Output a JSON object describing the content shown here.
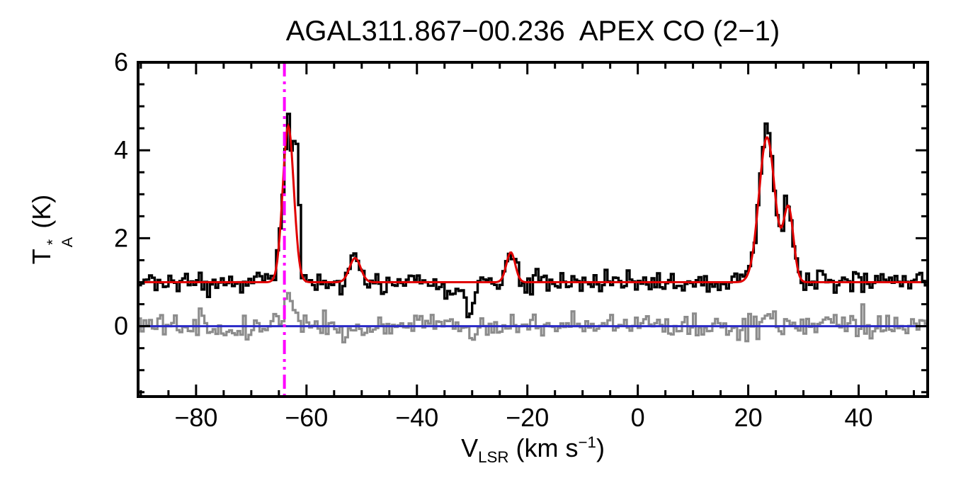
{
  "chart_data": {
    "type": "line",
    "title": "AGAL311.867−00.236  APEX CO (2−1)",
    "ylabel_parts": {
      "symbol": "T",
      "sup": "*",
      "sub": "A",
      "unit": "(K)"
    },
    "xlabel_parts": {
      "symbol": "V",
      "sub": "LSR",
      "pre_unit": "(km s",
      "exp": "−1",
      "post": ")"
    },
    "xlim": [
      -90.5,
      52.5
    ],
    "ylim": [
      -1.6,
      6
    ],
    "xticks": [
      -80,
      -60,
      -40,
      -20,
      0,
      20,
      40
    ],
    "yticks": [
      0,
      2,
      4,
      6
    ],
    "x_minor_step": 5,
    "y_minor_step": 0.5,
    "baseline": 1.0,
    "channel_width": 0.5,
    "noise_sigma": 0.12,
    "noise_seed": 20,
    "systemic_velocity": -64.0,
    "fit_components": [
      {
        "center": -63.3,
        "amp": 3.55,
        "sigma": 1.0
      },
      {
        "center": -51.2,
        "amp": 0.55,
        "sigma": 1.0
      },
      {
        "center": -23.0,
        "amp": 0.68,
        "sigma": 0.8
      },
      {
        "center": 23.4,
        "amp": 3.3,
        "sigma": 1.45
      },
      {
        "center": 27.3,
        "amp": 1.65,
        "sigma": 0.9
      }
    ],
    "spectrum_extra": [
      {
        "center": -61.7,
        "amp": 2.1,
        "sigma": 0.45
      },
      {
        "center": -30.3,
        "amp": -0.85,
        "sigma": 0.55
      },
      {
        "center": -33.5,
        "amp": -0.25,
        "sigma": 1.8
      },
      {
        "center": 23.2,
        "amp": 0.3,
        "sigma": 0.8
      }
    ],
    "residual": {
      "sigma": 0.14,
      "seed": 77,
      "features": [
        {
          "center": -63.2,
          "amp": 0.55,
          "sigma": 0.9
        },
        {
          "center": -30.3,
          "amp": -0.4,
          "sigma": 0.6
        },
        {
          "center": 23.6,
          "amp": 0.3,
          "sigma": 1.3
        }
      ]
    },
    "zero_line_y": 0,
    "grid": "off",
    "legend": "none",
    "colors": {
      "spectrum": "#000000",
      "fit": "#e10000",
      "residual": "#8c8c8c",
      "zero_line": "#2929c8",
      "vline": "#ff00ff",
      "frame": "#000000",
      "background": "#ffffff"
    }
  }
}
